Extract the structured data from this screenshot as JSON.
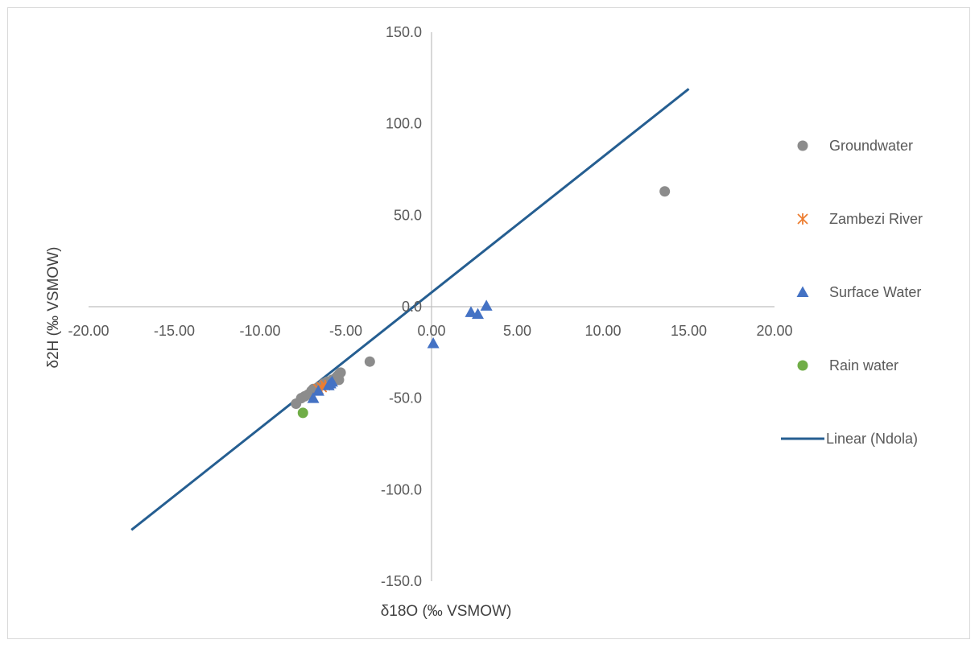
{
  "chart_data": {
    "type": "scatter",
    "xlabel": "δ18O (‰ VSMOW)",
    "ylabel": "δ2H (‰ VSMOW)",
    "xlim": [
      -20,
      20
    ],
    "ylim": [
      -150,
      150
    ],
    "x_ticks": [
      "-20.00",
      "-15.00",
      "-10.00",
      "-5.00",
      "0.00",
      "5.00",
      "10.00",
      "15.00",
      "20.00"
    ],
    "y_ticks": [
      "150.0",
      "100.0",
      "50.0",
      "0.0",
      "-50.0",
      "-100.0",
      "-150.0"
    ],
    "grid": false,
    "legend_position": "right",
    "series": [
      {
        "name": "Groundwater",
        "marker": "circle",
        "color": "#8c8c8c",
        "points": [
          [
            -7.9,
            -53
          ],
          [
            -7.6,
            -50
          ],
          [
            -7.4,
            -49
          ],
          [
            -7.2,
            -48
          ],
          [
            -7.0,
            -46
          ],
          [
            -6.9,
            -45
          ],
          [
            -6.6,
            -44
          ],
          [
            -6.3,
            -42
          ],
          [
            -6.1,
            -41
          ],
          [
            -5.8,
            -40
          ],
          [
            -5.6,
            -39
          ],
          [
            -5.5,
            -38
          ],
          [
            -5.4,
            -37
          ],
          [
            -5.3,
            -36
          ],
          [
            -5.4,
            -40
          ],
          [
            -3.6,
            -30
          ],
          [
            13.6,
            63
          ]
        ]
      },
      {
        "name": "Zambezi River",
        "marker": "asterisk",
        "color": "#ed7d31",
        "points": [
          [
            -6.6,
            -45
          ],
          [
            -6.4,
            -44
          ],
          [
            -6.2,
            -43
          ]
        ]
      },
      {
        "name": "Surface Water",
        "marker": "triangle",
        "color": "#4472c4",
        "points": [
          [
            -6.9,
            -50
          ],
          [
            -6.6,
            -46
          ],
          [
            -6.0,
            -43
          ],
          [
            -5.9,
            -42
          ],
          [
            -5.8,
            -41
          ],
          [
            0.1,
            -20
          ],
          [
            2.3,
            -3
          ],
          [
            2.7,
            -4
          ],
          [
            3.2,
            0.5
          ]
        ]
      },
      {
        "name": "Rain water",
        "marker": "circle",
        "color": "#70ad47",
        "points": [
          [
            -7.5,
            -58
          ]
        ]
      },
      {
        "name": "Linear (Ndola)",
        "marker": "line",
        "color": "#255e91",
        "points": [
          [
            -17.5,
            -122
          ],
          [
            15.0,
            119
          ]
        ]
      }
    ]
  }
}
